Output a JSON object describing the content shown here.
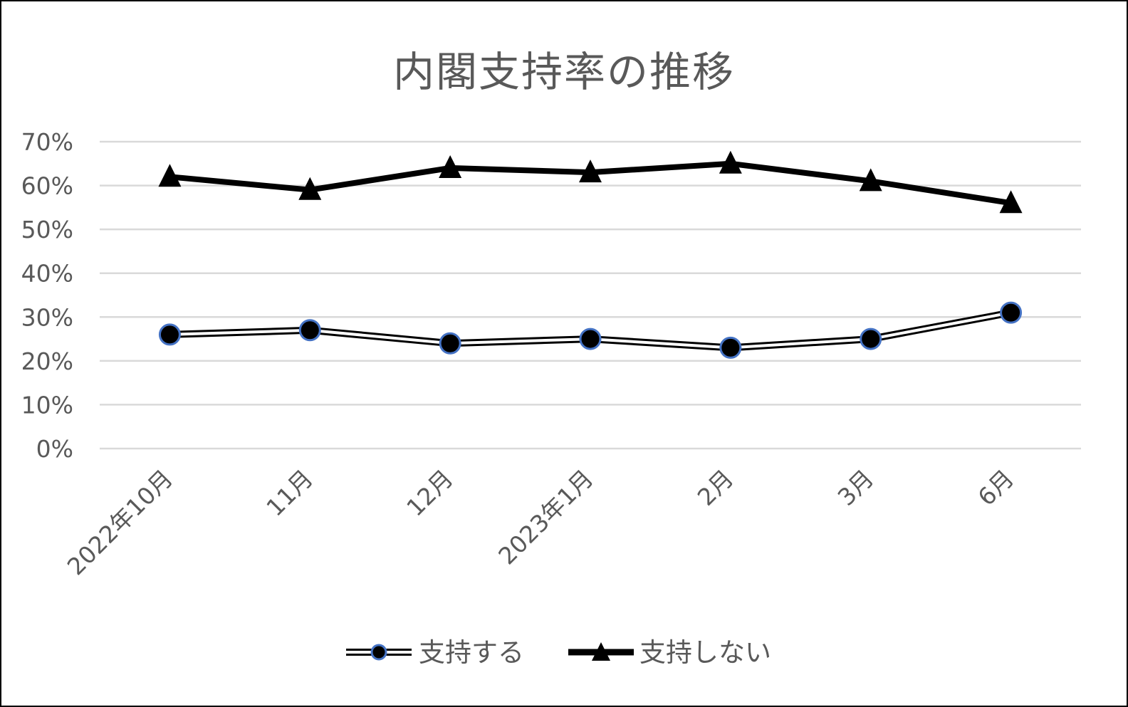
{
  "chart_data": {
    "type": "line",
    "title": "内閣支持率の推移",
    "categories": [
      "2022年10月",
      "11月",
      "12月",
      "2023年1月",
      "2月",
      "3月",
      "6月"
    ],
    "series": [
      {
        "name": "支持する",
        "values": [
          26,
          27,
          24,
          25,
          23,
          25,
          31
        ],
        "marker": "circle",
        "line_style": "double",
        "color": "#000000",
        "marker_edge_color": "#4472C4"
      },
      {
        "name": "支持しない",
        "values": [
          62,
          59,
          64,
          63,
          65,
          61,
          56
        ],
        "marker": "triangle",
        "line_style": "thick",
        "color": "#000000"
      }
    ],
    "ylim": [
      0,
      70
    ],
    "yticks": [
      "0%",
      "10%",
      "20%",
      "30%",
      "40%",
      "50%",
      "60%",
      "70%"
    ],
    "grid": true,
    "legend_position": "bottom"
  }
}
